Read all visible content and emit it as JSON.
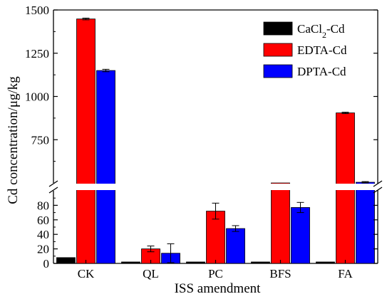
{
  "chart_data": {
    "type": "bar",
    "categories": [
      "CK",
      "QL",
      "PC",
      "BFS",
      "FA"
    ],
    "xlabel": "ISS amendment",
    "ylabel": "Cd concentration/μg/kg",
    "axis_break": true,
    "ylim_lower": [
      0,
      100
    ],
    "ylim_upper": [
      500,
      1500
    ],
    "yticks_lower": [
      "0",
      "20",
      "40",
      "60",
      "80"
    ],
    "yticks_upper": [
      "750",
      "1000",
      "1250",
      "1500"
    ],
    "legend": {
      "position": "top-right"
    },
    "series": [
      {
        "name": "CaCl2-Cd",
        "label_main": "CaCl",
        "label_sub": "2",
        "label_tail": "-Cd",
        "color": "#000000",
        "values": [
          8,
          2,
          2,
          2,
          2
        ],
        "errors": [
          0,
          0,
          0,
          0,
          0
        ]
      },
      {
        "name": "EDTA-Cd",
        "label_main": "EDTA-Cd",
        "color": "#ff0000",
        "values": [
          1448,
          20,
          72,
          500,
          905
        ],
        "errors": [
          5,
          4,
          11,
          0,
          4
        ]
      },
      {
        "name": "DPTA-Cd",
        "label_main": "DPTA-Cd",
        "color": "#0000ff",
        "values": [
          1150,
          14,
          48,
          77,
          504
        ],
        "errors": [
          7,
          13,
          4,
          7,
          4
        ]
      }
    ]
  }
}
